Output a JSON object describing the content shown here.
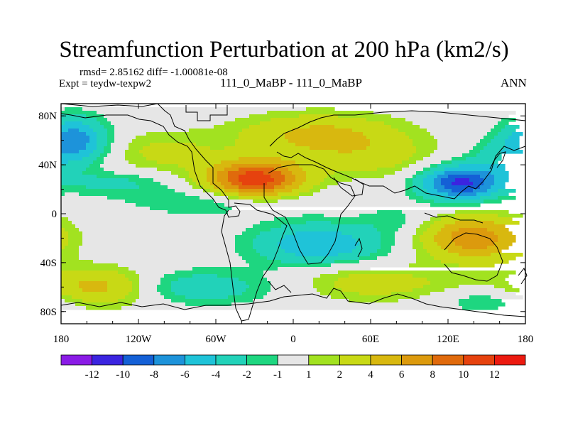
{
  "title": "Streamfunction Perturbation at 200 hPa (km2/s)",
  "stats_line": "rmsd= 2.85162 diff= -1.00081e-08",
  "experiment_line": "Expt = teydw-texpw2",
  "cases_line": "111_0_MaBP - 111_0_MaBP",
  "season": "ANN",
  "chart_data": {
    "type": "filled-contour map",
    "projection": "cylindrical equidistant",
    "x_range": [
      -180,
      180
    ],
    "y_range": [
      -90,
      90
    ],
    "x_ticks": [
      {
        "value": -180,
        "label": "180"
      },
      {
        "value": -120,
        "label": "120W"
      },
      {
        "value": -60,
        "label": "60W"
      },
      {
        "value": 0,
        "label": "0"
      },
      {
        "value": 60,
        "label": "60E"
      },
      {
        "value": 120,
        "label": "120E"
      },
      {
        "value": 180,
        "label": "180"
      }
    ],
    "y_ticks": [
      {
        "value": 80,
        "label": "80N"
      },
      {
        "value": 40,
        "label": "40N"
      },
      {
        "value": 0,
        "label": "0"
      },
      {
        "value": -40,
        "label": "40S"
      },
      {
        "value": -80,
        "label": "80S"
      }
    ],
    "colorbar": {
      "colors": [
        "#8a1be6",
        "#3b24e0",
        "#1460d6",
        "#1d93da",
        "#1fc3d8",
        "#22d2b9",
        "#1ed680",
        "#e6e6e6",
        "#a2e220",
        "#c8d915",
        "#d8b80f",
        "#dc9a0d",
        "#e06a0c",
        "#e6420e",
        "#ec1a10"
      ],
      "labels": [
        "-12",
        "-10",
        "-8",
        "-6",
        "-4",
        "-2",
        "-1",
        "1",
        "2",
        "4",
        "6",
        "8",
        "10",
        "12"
      ]
    },
    "field_levels": [
      -12,
      -10,
      -8,
      -6,
      -4,
      -2,
      -1,
      1,
      2,
      4,
      6,
      8,
      10,
      12
    ],
    "features": [
      {
        "lon": -30,
        "lat": 28,
        "peak": 11.5,
        "sx": 26,
        "sy": 11
      },
      {
        "lon": 20,
        "lat": 65,
        "peak": 4.5,
        "sx": 45,
        "sy": 12
      },
      {
        "lon": 60,
        "lat": 45,
        "peak": 2.5,
        "sx": 40,
        "sy": 12
      },
      {
        "lon": 140,
        "lat": -20,
        "peak": 7.5,
        "sx": 28,
        "sy": 13
      },
      {
        "lon": -150,
        "lat": -60,
        "peak": 5.5,
        "sx": 32,
        "sy": 11
      },
      {
        "lon": -100,
        "lat": 50,
        "peak": 2.5,
        "sx": 30,
        "sy": 12
      },
      {
        "lon": 50,
        "lat": -55,
        "peak": 2.5,
        "sx": 35,
        "sy": 11
      },
      {
        "lon": 110,
        "lat": -60,
        "peak": 1.5,
        "sx": 40,
        "sy": 10
      },
      {
        "lon": 130,
        "lat": 25,
        "peak": -10.5,
        "sx": 22,
        "sy": 10
      },
      {
        "lon": -170,
        "lat": 60,
        "peak": -7.5,
        "sx": 18,
        "sy": 13
      },
      {
        "lon": 20,
        "lat": -25,
        "peak": -6.0,
        "sx": 35,
        "sy": 12
      },
      {
        "lon": -60,
        "lat": 10,
        "peak": -2.5,
        "sx": 45,
        "sy": 8
      },
      {
        "lon": -140,
        "lat": 25,
        "peak": -2.5,
        "sx": 30,
        "sy": 7
      },
      {
        "lon": -80,
        "lat": -60,
        "peak": -3.5,
        "sx": 45,
        "sy": 10
      },
      {
        "lon": 160,
        "lat": 45,
        "peak": -2.5,
        "sx": 20,
        "sy": 12
      },
      {
        "lon": 150,
        "lat": -70,
        "peak": -2.5,
        "sx": 30,
        "sy": 8
      },
      {
        "lon": 80,
        "lat": -5,
        "peak": -1.5,
        "sx": 18,
        "sy": 8
      }
    ]
  }
}
